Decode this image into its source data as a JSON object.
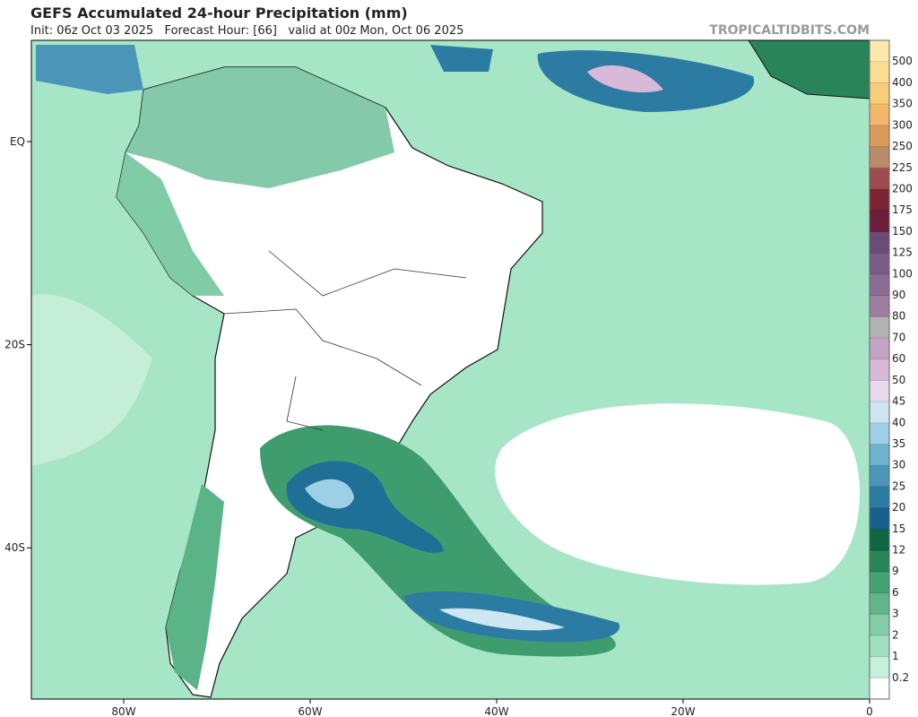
{
  "header": {
    "title": "GEFS Accumulated 24-hour Precipitation (mm)",
    "subtitle": "Init: 06z Oct 03 2025   Forecast Hour: [66]   valid at 00z Mon, Oct 06 2025",
    "watermark": "TROPICALTIDBITS.COM"
  },
  "map": {
    "lon_ticks": [
      {
        "value": -80,
        "label": "80W"
      },
      {
        "value": -60,
        "label": "60W"
      },
      {
        "value": -40,
        "label": "40W"
      },
      {
        "value": -20,
        "label": "20W"
      },
      {
        "value": 0,
        "label": "0"
      }
    ],
    "lat_ticks": [
      {
        "value": 0,
        "label": "EQ"
      },
      {
        "value": -20,
        "label": "20S"
      },
      {
        "value": -40,
        "label": "40S"
      }
    ]
  },
  "colorbar": {
    "levels": [
      0.2,
      1,
      2,
      3,
      6,
      9,
      12,
      15,
      20,
      25,
      30,
      35,
      40,
      45,
      50,
      60,
      70,
      80,
      90,
      100,
      125,
      150,
      175,
      200,
      225,
      250,
      300,
      350,
      400,
      500
    ],
    "colors": [
      "#ffffff",
      "#c6f0da",
      "#a2e0c2",
      "#82cca8",
      "#62b68c",
      "#45a072",
      "#2a845a",
      "#0f6642",
      "#17618c",
      "#2c7ba2",
      "#4a95b8",
      "#6fb2d0",
      "#9dcfe6",
      "#cde7f2",
      "#ead8ec",
      "#d8bad8",
      "#c4a2c6",
      "#b2b2b2",
      "#9e7ea2",
      "#8c6c96",
      "#7c5c86",
      "#6c4c76",
      "#6c1c3c",
      "#7c2434",
      "#9c4c4c",
      "#ba8a6a",
      "#da9a5a",
      "#f0b868",
      "#f8cc78",
      "#fcdc90",
      "#fde9ab"
    ]
  }
}
